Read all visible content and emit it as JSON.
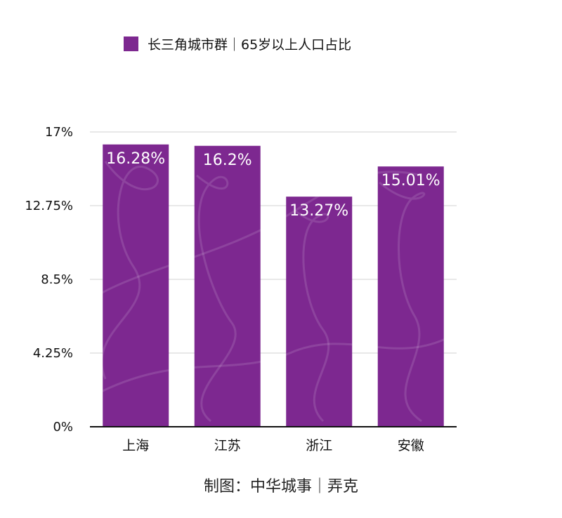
{
  "chart_data": {
    "type": "bar",
    "categories": [
      "上海",
      "江苏",
      "浙江",
      "安徽"
    ],
    "series": [
      {
        "name": "长三角城市群｜65岁以上人口占比",
        "values": [
          16.28,
          16.2,
          13.27,
          15.01
        ],
        "labels": [
          "16.28%",
          "16.2%",
          "13.27%",
          "15.01%"
        ]
      }
    ],
    "y_ticks": [
      "0%",
      "4.25%",
      "8.5%",
      "12.75%",
      "17%"
    ],
    "y_tick_values": [
      0,
      4.25,
      8.5,
      12.75,
      17
    ],
    "ylim": [
      0,
      17
    ],
    "grid": true,
    "legend_position": "top",
    "colors": {
      "bar": "#7d2890",
      "grid": "#d0d0d0",
      "axis": "#111111"
    }
  },
  "footer": {
    "credit": "制图：中华城事｜弄克"
  }
}
